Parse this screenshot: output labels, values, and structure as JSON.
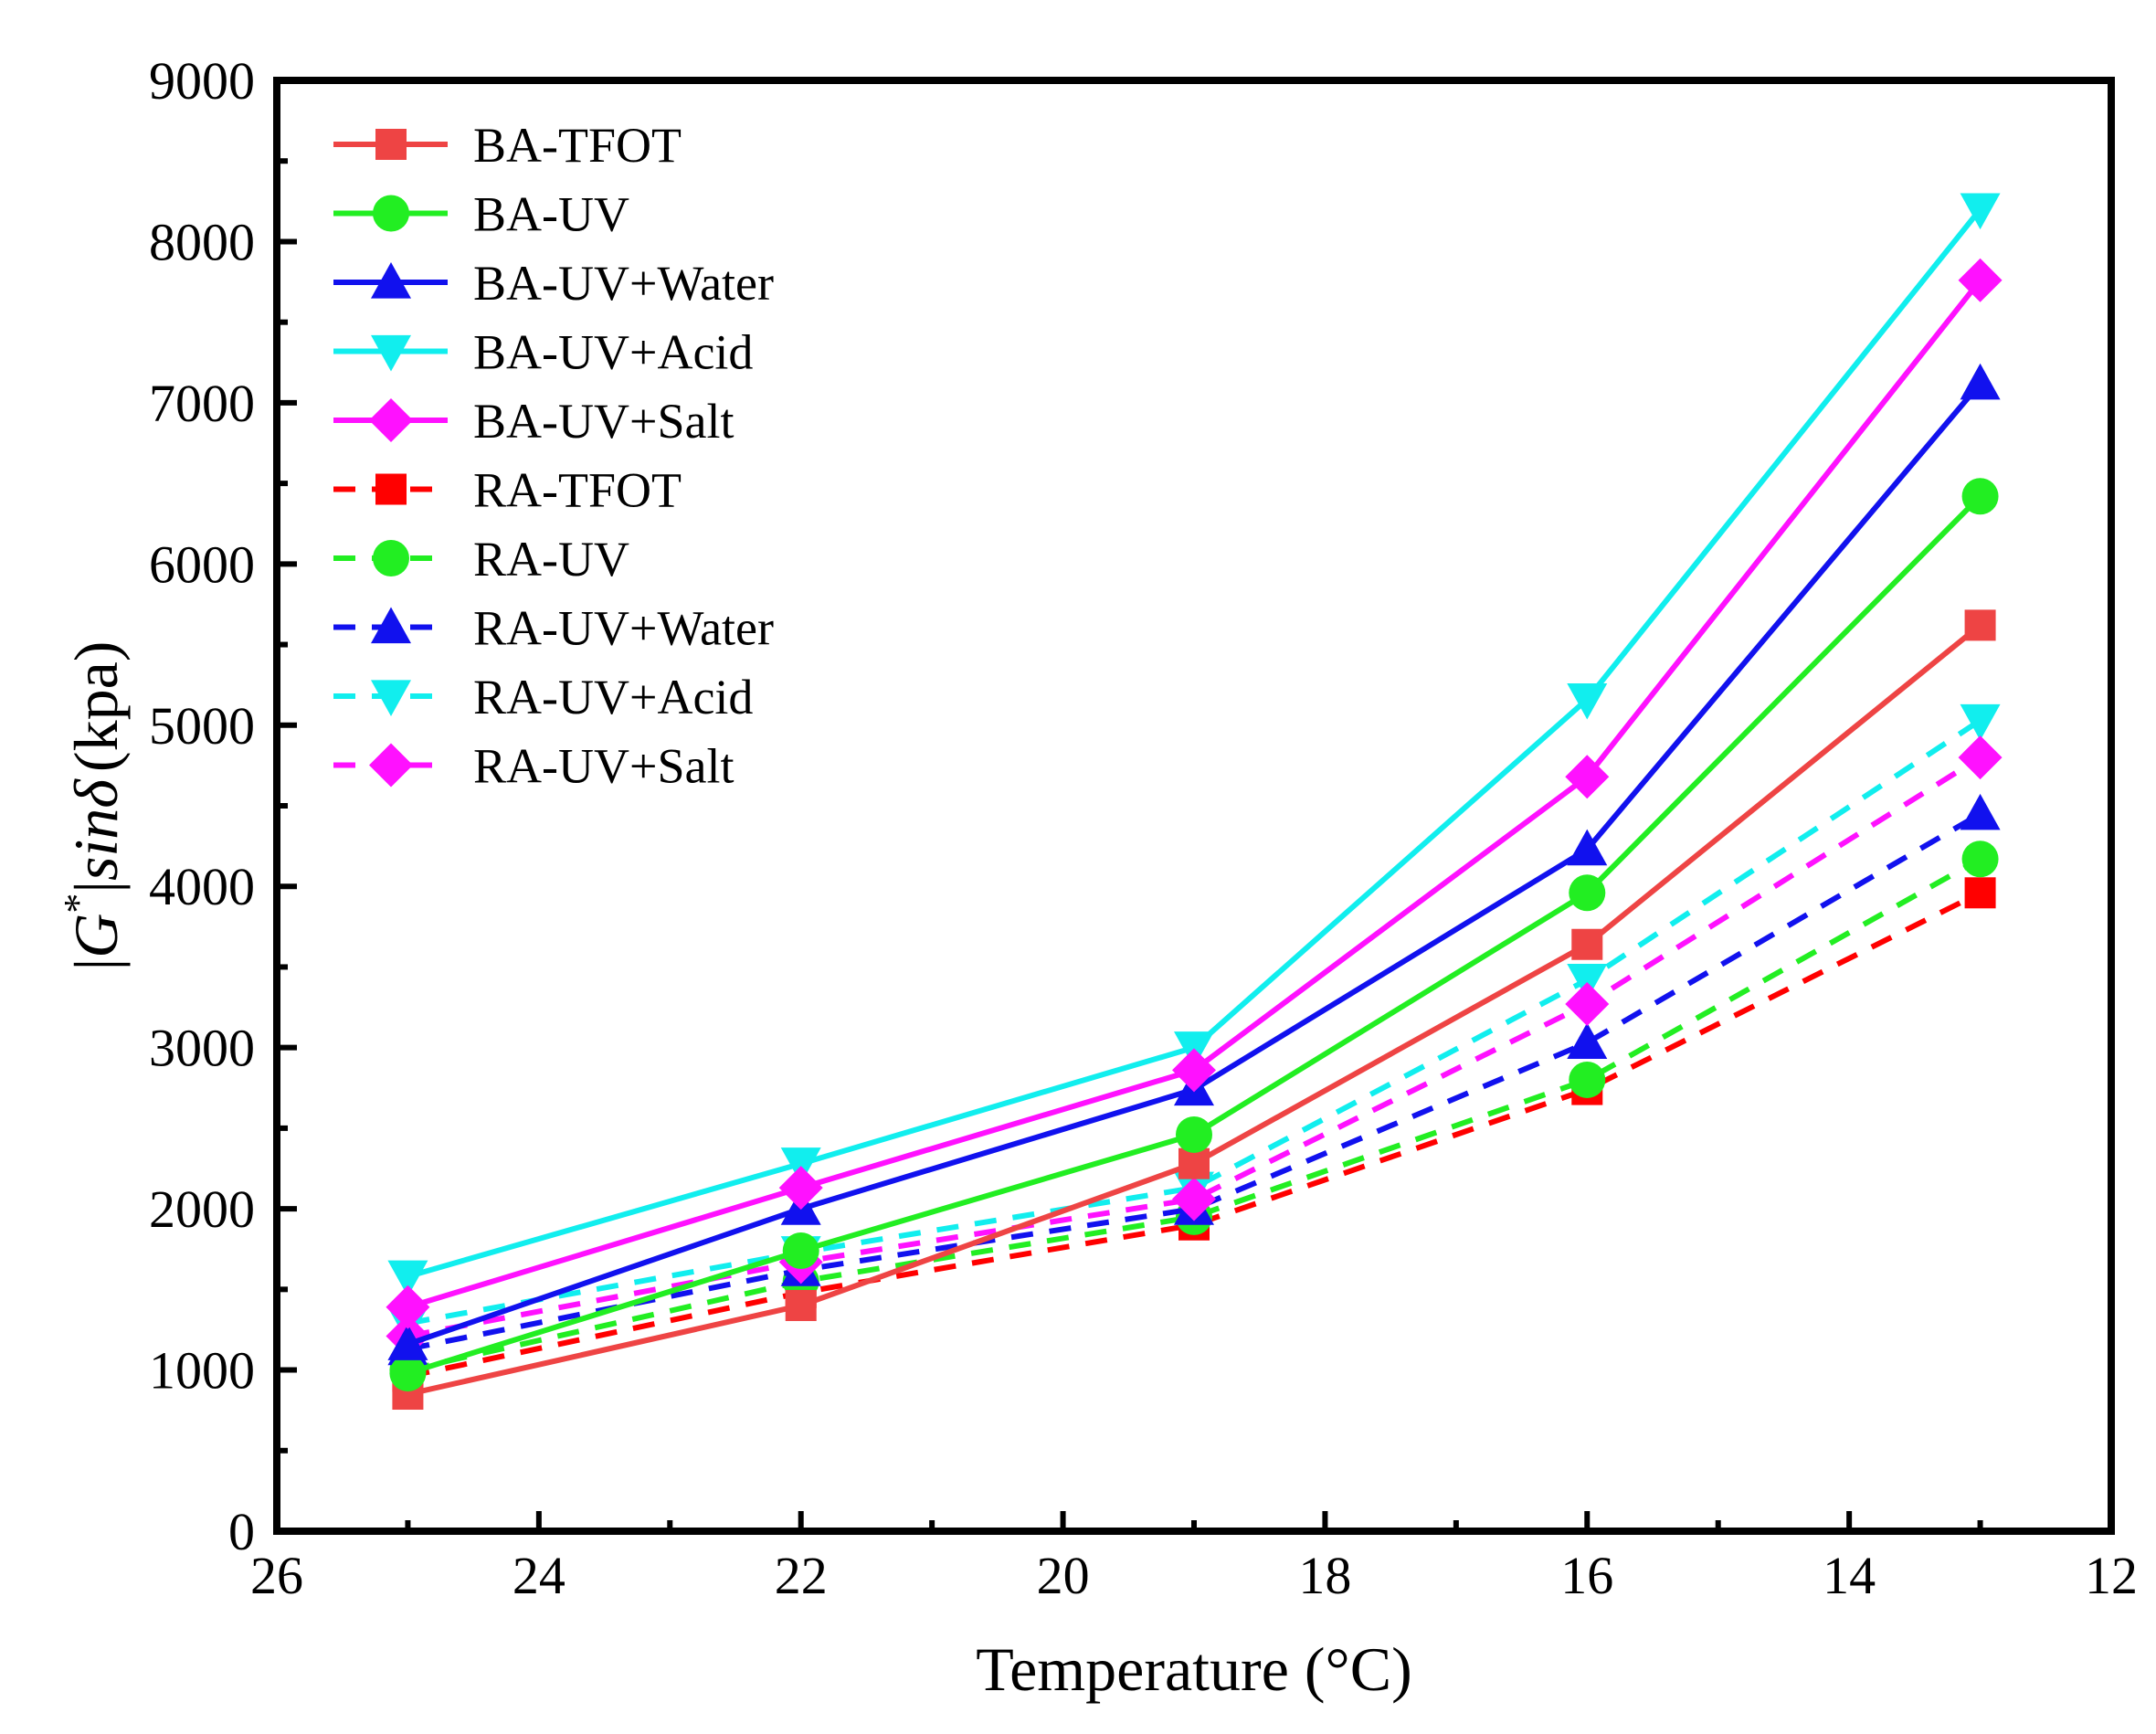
{
  "chart_data": {
    "type": "line",
    "xlabel": "Temperature (°C)",
    "ylabel": {
      "prefix": "|",
      "G": "G",
      "sup": "*",
      "mid": "|",
      "sin": "sin",
      "delta": "δ",
      "unit": "(kpa)"
    },
    "xlim": [
      26,
      12
    ],
    "ylim": [
      0,
      9000
    ],
    "x_ticks": [
      26,
      24,
      22,
      20,
      18,
      16,
      14,
      12
    ],
    "y_ticks": [
      0,
      1000,
      2000,
      3000,
      4000,
      5000,
      6000,
      7000,
      8000,
      9000
    ],
    "x": [
      25,
      22,
      19,
      16,
      13
    ],
    "legend_position": "top-left",
    "series": [
      {
        "name": "BA-TFOT",
        "color": "#ee4444",
        "marker": "square",
        "dash": false,
        "values": [
          850,
          1400,
          2280,
          3640,
          5620
        ]
      },
      {
        "name": "BA-UV",
        "color": "#22ee22",
        "marker": "circle",
        "dash": false,
        "values": [
          980,
          1740,
          2460,
          3960,
          6420
        ]
      },
      {
        "name": "BA-UV+Water",
        "color": "#1111ee",
        "marker": "triangle-up",
        "dash": false,
        "values": [
          1160,
          2000,
          2740,
          4230,
          7120
        ]
      },
      {
        "name": "BA-UV+Acid",
        "color": "#11eeee",
        "marker": "triangle-down",
        "dash": false,
        "values": [
          1580,
          2280,
          3000,
          5160,
          8200
        ]
      },
      {
        "name": "BA-UV+Salt",
        "color": "#ff11ff",
        "marker": "diamond",
        "dash": false,
        "values": [
          1390,
          2130,
          2860,
          4680,
          7760
        ]
      },
      {
        "name": "RA-TFOT",
        "color": "#ff0000",
        "marker": "square",
        "dash": true,
        "values": [
          960,
          1480,
          1900,
          2740,
          3960
        ]
      },
      {
        "name": "RA-UV",
        "color": "#22ee22",
        "marker": "circle",
        "dash": true,
        "values": [
          1000,
          1550,
          1950,
          2800,
          4170
        ]
      },
      {
        "name": "RA-UV+Water",
        "color": "#1111ee",
        "marker": "triangle-up",
        "dash": true,
        "values": [
          1130,
          1620,
          2000,
          3030,
          4450
        ]
      },
      {
        "name": "RA-UV+Acid",
        "color": "#11eeee",
        "marker": "triangle-down",
        "dash": true,
        "values": [
          1290,
          1730,
          2130,
          3420,
          5030
        ]
      },
      {
        "name": "RA-UV+Salt",
        "color": "#ff11ff",
        "marker": "diamond",
        "dash": true,
        "values": [
          1210,
          1670,
          2060,
          3270,
          4800
        ]
      }
    ]
  }
}
